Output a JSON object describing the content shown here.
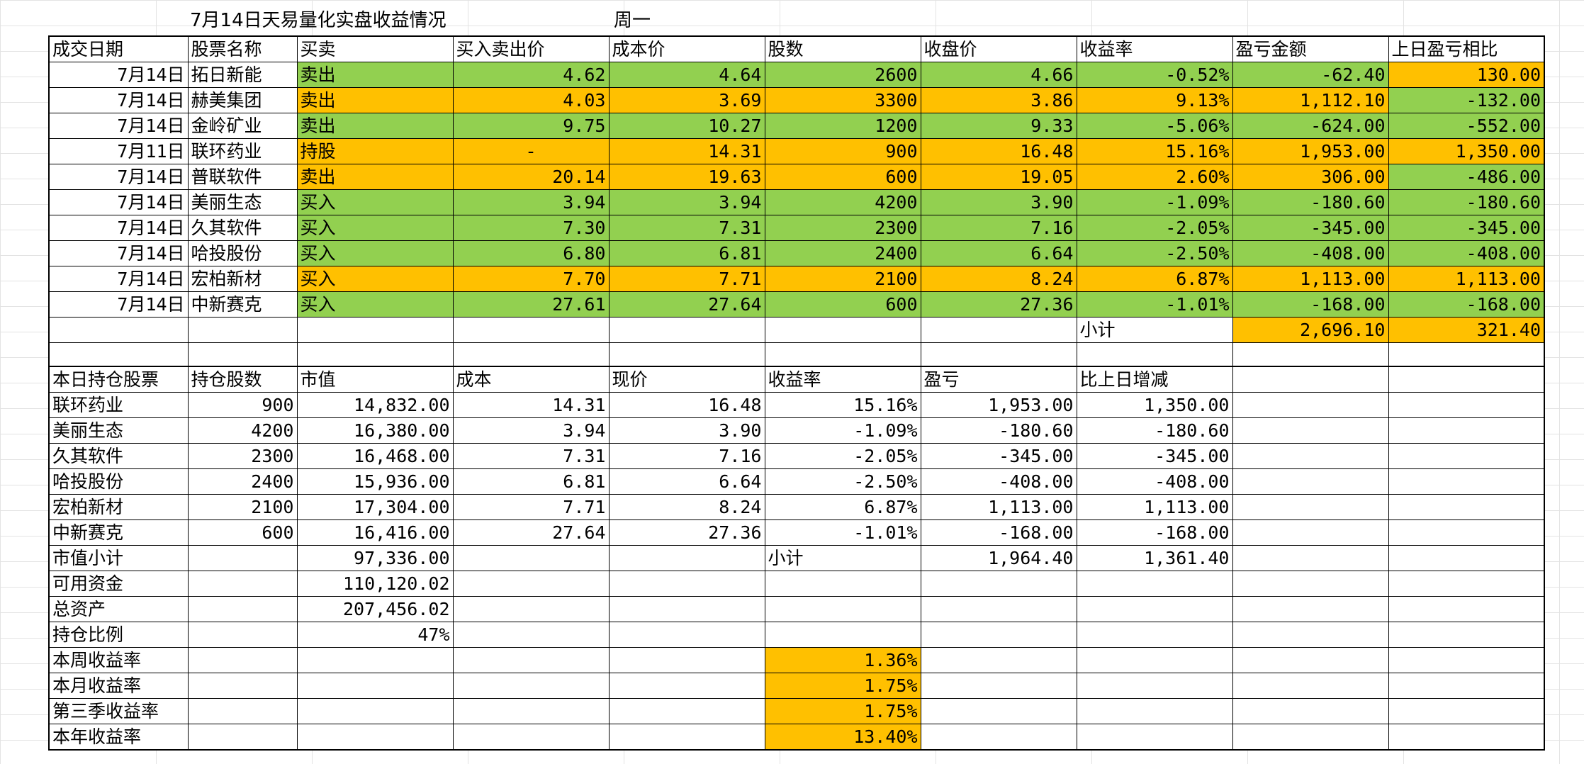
{
  "header": {
    "title": "7月14日天易量化实盘收益情况",
    "weekday": "周一"
  },
  "trades": {
    "columns": [
      "成交日期",
      "股票名称",
      "买卖",
      "买入卖出价",
      "成本价",
      "股数",
      "收盘价",
      "收益率",
      "盈亏金额",
      "上日盈亏相比"
    ],
    "rows": [
      {
        "date": "7月14日",
        "name": "拓日新能",
        "action": "卖出",
        "price": "4.62",
        "cost": "4.64",
        "shares": "2600",
        "close": "4.66",
        "rate": "-0.52%",
        "pnl": "-62.40",
        "vs_prev": "130.00"
      },
      {
        "date": "7月14日",
        "name": "赫美集团",
        "action": "卖出",
        "price": "4.03",
        "cost": "3.69",
        "shares": "3300",
        "close": "3.86",
        "rate": "9.13%",
        "pnl": "1,112.10",
        "vs_prev": "-132.00"
      },
      {
        "date": "7月14日",
        "name": "金岭矿业",
        "action": "卖出",
        "price": "9.75",
        "cost": "10.27",
        "shares": "1200",
        "close": "9.33",
        "rate": "-5.06%",
        "pnl": "-624.00",
        "vs_prev": "-552.00"
      },
      {
        "date": "7月11日",
        "name": "联环药业",
        "action": "持股",
        "price": "-",
        "cost": "14.31",
        "shares": "900",
        "close": "16.48",
        "rate": "15.16%",
        "pnl": "1,953.00",
        "vs_prev": "1,350.00"
      },
      {
        "date": "7月14日",
        "name": "普联软件",
        "action": "卖出",
        "price": "20.14",
        "cost": "19.63",
        "shares": "600",
        "close": "19.05",
        "rate": "2.60%",
        "pnl": "306.00",
        "vs_prev": "-486.00"
      },
      {
        "date": "7月14日",
        "name": "美丽生态",
        "action": "买入",
        "price": "3.94",
        "cost": "3.94",
        "shares": "4200",
        "close": "3.90",
        "rate": "-1.09%",
        "pnl": "-180.60",
        "vs_prev": "-180.60"
      },
      {
        "date": "7月14日",
        "name": "久其软件",
        "action": "买入",
        "price": "7.30",
        "cost": "7.31",
        "shares": "2300",
        "close": "7.16",
        "rate": "-2.05%",
        "pnl": "-345.00",
        "vs_prev": "-345.00"
      },
      {
        "date": "7月14日",
        "name": "哈投股份",
        "action": "买入",
        "price": "6.80",
        "cost": "6.81",
        "shares": "2400",
        "close": "6.64",
        "rate": "-2.50%",
        "pnl": "-408.00",
        "vs_prev": "-408.00"
      },
      {
        "date": "7月14日",
        "name": "宏柏新材",
        "action": "买入",
        "price": "7.70",
        "cost": "7.71",
        "shares": "2100",
        "close": "8.24",
        "rate": "6.87%",
        "pnl": "1,113.00",
        "vs_prev": "1,113.00"
      },
      {
        "date": "7月14日",
        "name": "中新赛克",
        "action": "买入",
        "price": "27.61",
        "cost": "27.64",
        "shares": "600",
        "close": "27.36",
        "rate": "-1.01%",
        "pnl": "-168.00",
        "vs_prev": "-168.00"
      }
    ],
    "subtotal_label": "小计",
    "subtotal_pnl": "2,696.10",
    "subtotal_vs_prev": "321.40"
  },
  "holdings": {
    "columns": [
      "本日持仓股票",
      "持仓股数",
      "市值",
      "成本",
      "现价",
      "收益率",
      "盈亏",
      "比上日增减"
    ],
    "rows": [
      {
        "name": "联环药业",
        "shares": "900",
        "value": "14,832.00",
        "cost": "14.31",
        "price": "16.48",
        "rate": "15.16%",
        "pnl": "1,953.00",
        "change": "1,350.00"
      },
      {
        "name": "美丽生态",
        "shares": "4200",
        "value": "16,380.00",
        "cost": "3.94",
        "price": "3.90",
        "rate": "-1.09%",
        "pnl": "-180.60",
        "change": "-180.60"
      },
      {
        "name": "久其软件",
        "shares": "2300",
        "value": "16,468.00",
        "cost": "7.31",
        "price": "7.16",
        "rate": "-2.05%",
        "pnl": "-345.00",
        "change": "-345.00"
      },
      {
        "name": "哈投股份",
        "shares": "2400",
        "value": "15,936.00",
        "cost": "6.81",
        "price": "6.64",
        "rate": "-2.50%",
        "pnl": "-408.00",
        "change": "-408.00"
      },
      {
        "name": "宏柏新材",
        "shares": "2100",
        "value": "17,304.00",
        "cost": "7.71",
        "price": "8.24",
        "rate": "6.87%",
        "pnl": "1,113.00",
        "change": "1,113.00"
      },
      {
        "name": "中新赛克",
        "shares": "600",
        "value": "16,416.00",
        "cost": "27.64",
        "price": "27.36",
        "rate": "-1.01%",
        "pnl": "-168.00",
        "change": "-168.00"
      }
    ],
    "value_subtotal_label": "市值小计",
    "value_subtotal": "97,336.00",
    "subtotal_label": "小计",
    "subtotal_pnl": "1,964.40",
    "subtotal_change": "1,361.40",
    "available_cash_label": "可用资金",
    "available_cash": "110,120.02",
    "total_assets_label": "总资产",
    "total_assets": "207,456.02",
    "position_ratio_label": "持仓比例",
    "position_ratio": "47%",
    "returns": [
      {
        "label": "本周收益率",
        "value": "1.36%"
      },
      {
        "label": "本月收益率",
        "value": "1.75%"
      },
      {
        "label": "第三季收益率",
        "value": "1.75%"
      },
      {
        "label": "本年收益率",
        "value": "13.40%"
      }
    ]
  },
  "colors": {
    "green": "#92d050",
    "orange": "#ffc000",
    "border": "#000000"
  }
}
